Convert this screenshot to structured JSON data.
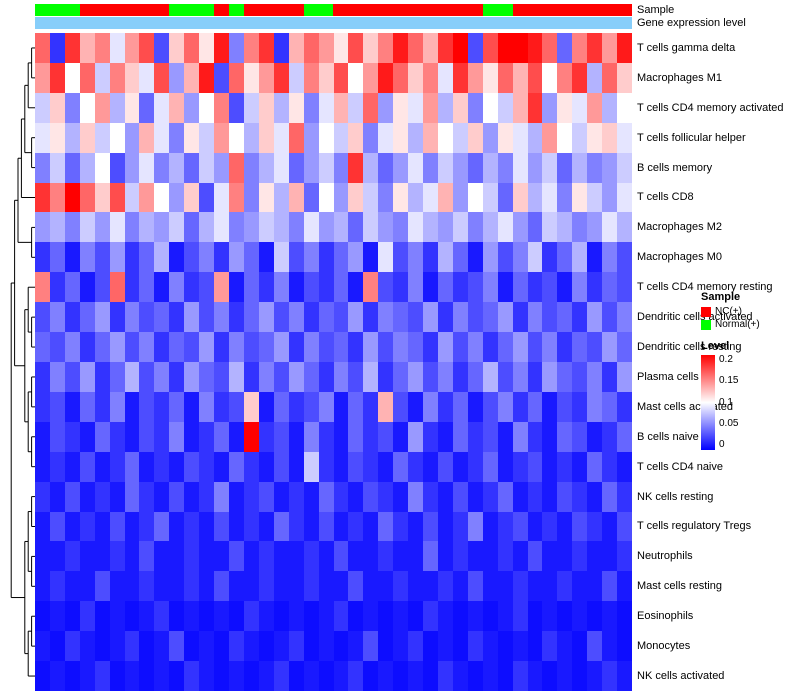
{
  "annotations": {
    "sample_label": "Sample",
    "gene_expression_label": "Gene expression level",
    "sample_colors": {
      "NC": "#FF0000",
      "Normal": "#00FF00"
    },
    "gene_expression_color": "#87CEFA",
    "sample_assignments": [
      "Normal",
      "Normal",
      "Normal",
      "NC",
      "NC",
      "NC",
      "NC",
      "NC",
      "NC",
      "Normal",
      "Normal",
      "Normal",
      "NC",
      "Normal",
      "NC",
      "NC",
      "NC",
      "NC",
      "Normal",
      "Normal",
      "NC",
      "NC",
      "NC",
      "NC",
      "NC",
      "NC",
      "NC",
      "NC",
      "NC",
      "NC",
      "Normal",
      "Normal",
      "NC",
      "NC",
      "NC",
      "NC",
      "NC",
      "NC",
      "NC",
      "NC"
    ]
  },
  "legend": {
    "sample_title": "Sample",
    "sample_items": [
      {
        "label": "NC(+)",
        "color": "#FF0000"
      },
      {
        "label": "Normal(+)",
        "color": "#00FF00"
      }
    ],
    "level_title": "Level",
    "level_ticks": [
      "0.2",
      "0.15",
      "0.1",
      "0.05",
      "0"
    ],
    "level_gradient": [
      "#FF0000",
      "#FFFFFF",
      "#0000FF"
    ]
  },
  "chart_data": {
    "type": "heatmap",
    "title": "",
    "value_range": [
      0,
      0.2
    ],
    "colormap": "blue-white-red",
    "columns_count": 40,
    "rows": [
      "T cells gamma delta",
      "Macrophages M1",
      "T cells CD4 memory activated",
      "T cells follicular helper",
      "B cells memory",
      "T cells CD8",
      "Macrophages M2",
      "Macrophages M0",
      "T cells CD4 memory resting",
      "Dendritic cells activated",
      "Dendritic cells resting",
      "Plasma cells",
      "Mast cells activated",
      "B cells naive",
      "T cells CD4 naive",
      "NK cells resting",
      "T cells regulatory  Tregs",
      "Neutrophils",
      "Mast cells resting",
      "Eosinophils",
      "Monocytes",
      "NK cells activated"
    ],
    "row_dendrogram": [
      [
        [
          [
            [
              [
                [
                  0,
                  1
                ],
                2
              ],
              [
                3,
                4
              ]
            ],
            5
          ],
          [
            6,
            7
          ]
        ],
        [
          [
            8,
            [
              9,
              10
            ]
          ],
          [
            [
              11,
              12
            ],
            [
              13,
              14
            ]
          ]
        ]
      ],
      [
        [
          [
            15,
            16
          ],
          [
            17,
            18
          ]
        ],
        [
          [
            19,
            20
          ],
          21
        ]
      ]
    ],
    "matrix": [
      [
        0.16,
        0.02,
        0.18,
        0.13,
        0.15,
        0.09,
        0.14,
        0.17,
        0.03,
        0.12,
        0.16,
        0.11,
        0.19,
        0.05,
        0.15,
        0.18,
        0.02,
        0.13,
        0.16,
        0.14,
        0.11,
        0.17,
        0.12,
        0.15,
        0.19,
        0.16,
        0.13,
        0.18,
        0.2,
        0.03,
        0.17,
        0.21,
        0.22,
        0.19,
        0.16,
        0.04,
        0.15,
        0.18,
        0.14,
        0.19
      ],
      [
        0.14,
        0.18,
        0.1,
        0.16,
        0.08,
        0.15,
        0.12,
        0.09,
        0.17,
        0.06,
        0.13,
        0.19,
        0.03,
        0.16,
        0.11,
        0.14,
        0.18,
        0.08,
        0.15,
        0.12,
        0.17,
        0.1,
        0.14,
        0.19,
        0.16,
        0.12,
        0.15,
        0.09,
        0.18,
        0.14,
        0.11,
        0.16,
        0.13,
        0.17,
        0.1,
        0.15,
        0.18,
        0.07,
        0.16,
        0.12
      ],
      [
        0.08,
        0.12,
        0.05,
        0.1,
        0.14,
        0.07,
        0.11,
        0.04,
        0.09,
        0.13,
        0.06,
        0.1,
        0.15,
        0.03,
        0.08,
        0.12,
        0.07,
        0.11,
        0.05,
        0.09,
        0.13,
        0.08,
        0.16,
        0.06,
        0.11,
        0.09,
        0.14,
        0.07,
        0.12,
        0.05,
        0.1,
        0.08,
        0.13,
        0.18,
        0.06,
        0.11,
        0.09,
        0.14,
        0.07,
        0.1
      ],
      [
        0.09,
        0.11,
        0.07,
        0.12,
        0.08,
        0.1,
        0.06,
        0.13,
        0.09,
        0.05,
        0.11,
        0.08,
        0.14,
        0.1,
        0.07,
        0.12,
        0.09,
        0.16,
        0.06,
        0.1,
        0.08,
        0.12,
        0.05,
        0.09,
        0.11,
        0.07,
        0.13,
        0.1,
        0.08,
        0.12,
        0.06,
        0.11,
        0.09,
        0.07,
        0.14,
        0.1,
        0.08,
        0.11,
        0.12,
        0.09
      ],
      [
        0.05,
        0.08,
        0.04,
        0.07,
        0.1,
        0.03,
        0.06,
        0.09,
        0.05,
        0.07,
        0.04,
        0.08,
        0.06,
        0.16,
        0.05,
        0.07,
        0.09,
        0.04,
        0.06,
        0.08,
        0.05,
        0.18,
        0.07,
        0.04,
        0.06,
        0.09,
        0.05,
        0.08,
        0.06,
        0.04,
        0.07,
        0.05,
        0.09,
        0.06,
        0.08,
        0.04,
        0.07,
        0.05,
        0.06,
        0.08
      ],
      [
        0.18,
        0.15,
        0.2,
        0.16,
        0.12,
        0.17,
        0.08,
        0.14,
        0.1,
        0.06,
        0.12,
        0.03,
        0.09,
        0.15,
        0.05,
        0.11,
        0.07,
        0.13,
        0.04,
        0.1,
        0.06,
        0.12,
        0.08,
        0.05,
        0.11,
        0.07,
        0.09,
        0.13,
        0.06,
        0.1,
        0.08,
        0.04,
        0.12,
        0.07,
        0.09,
        0.05,
        0.11,
        0.08,
        0.06,
        0.09
      ],
      [
        0.06,
        0.07,
        0.05,
        0.08,
        0.06,
        0.09,
        0.05,
        0.07,
        0.06,
        0.08,
        0.04,
        0.07,
        0.09,
        0.05,
        0.06,
        0.08,
        0.07,
        0.05,
        0.09,
        0.06,
        0.07,
        0.04,
        0.08,
        0.06,
        0.05,
        0.09,
        0.07,
        0.06,
        0.08,
        0.05,
        0.07,
        0.09,
        0.06,
        0.04,
        0.08,
        0.07,
        0.05,
        0.06,
        0.09,
        0.07
      ],
      [
        0.02,
        0.04,
        0.01,
        0.05,
        0.03,
        0.06,
        0.02,
        0.04,
        0.07,
        0.01,
        0.03,
        0.05,
        0.02,
        0.06,
        0.04,
        0.01,
        0.08,
        0.03,
        0.05,
        0.02,
        0.04,
        0.06,
        0.01,
        0.09,
        0.03,
        0.05,
        0.02,
        0.07,
        0.04,
        0.01,
        0.06,
        0.03,
        0.05,
        0.08,
        0.02,
        0.04,
        0.07,
        0.01,
        0.05,
        0.03
      ],
      [
        0.15,
        0.02,
        0.04,
        0.01,
        0.03,
        0.16,
        0.02,
        0.04,
        0.01,
        0.05,
        0.02,
        0.03,
        0.14,
        0.01,
        0.04,
        0.02,
        0.05,
        0.01,
        0.03,
        0.02,
        0.04,
        0.01,
        0.15,
        0.03,
        0.02,
        0.05,
        0.01,
        0.04,
        0.02,
        0.03,
        0.05,
        0.01,
        0.04,
        0.02,
        0.03,
        0.01,
        0.05,
        0.02,
        0.04,
        0.03
      ],
      [
        0.03,
        0.05,
        0.02,
        0.04,
        0.06,
        0.02,
        0.05,
        0.03,
        0.04,
        0.02,
        0.06,
        0.03,
        0.05,
        0.02,
        0.04,
        0.06,
        0.03,
        0.05,
        0.02,
        0.04,
        0.03,
        0.06,
        0.02,
        0.05,
        0.04,
        0.03,
        0.06,
        0.02,
        0.05,
        0.03,
        0.04,
        0.06,
        0.02,
        0.05,
        0.03,
        0.04,
        0.02,
        0.06,
        0.03,
        0.05
      ],
      [
        0.04,
        0.03,
        0.05,
        0.02,
        0.04,
        0.06,
        0.03,
        0.05,
        0.02,
        0.04,
        0.03,
        0.06,
        0.02,
        0.05,
        0.03,
        0.04,
        0.06,
        0.02,
        0.05,
        0.03,
        0.04,
        0.02,
        0.06,
        0.03,
        0.05,
        0.04,
        0.02,
        0.06,
        0.03,
        0.05,
        0.02,
        0.04,
        0.06,
        0.03,
        0.05,
        0.02,
        0.04,
        0.03,
        0.06,
        0.04
      ],
      [
        0.02,
        0.05,
        0.03,
        0.06,
        0.02,
        0.04,
        0.07,
        0.03,
        0.05,
        0.02,
        0.06,
        0.04,
        0.03,
        0.07,
        0.02,
        0.05,
        0.03,
        0.06,
        0.04,
        0.02,
        0.05,
        0.03,
        0.07,
        0.02,
        0.04,
        0.06,
        0.03,
        0.05,
        0.02,
        0.04,
        0.07,
        0.03,
        0.05,
        0.02,
        0.06,
        0.04,
        0.03,
        0.05,
        0.02,
        0.06
      ],
      [
        0.02,
        0.03,
        0.01,
        0.04,
        0.02,
        0.05,
        0.01,
        0.03,
        0.02,
        0.04,
        0.01,
        0.05,
        0.02,
        0.03,
        0.12,
        0.01,
        0.04,
        0.02,
        0.03,
        0.05,
        0.01,
        0.04,
        0.02,
        0.13,
        0.03,
        0.01,
        0.05,
        0.02,
        0.04,
        0.01,
        0.03,
        0.05,
        0.02,
        0.04,
        0.01,
        0.03,
        0.02,
        0.05,
        0.04,
        0.02
      ],
      [
        0.01,
        0.03,
        0.02,
        0.01,
        0.04,
        0.02,
        0.01,
        0.03,
        0.02,
        0.05,
        0.01,
        0.02,
        0.04,
        0.01,
        0.2,
        0.02,
        0.03,
        0.01,
        0.05,
        0.02,
        0.01,
        0.04,
        0.02,
        0.03,
        0.01,
        0.06,
        0.02,
        0.01,
        0.04,
        0.02,
        0.03,
        0.01,
        0.05,
        0.02,
        0.01,
        0.04,
        0.03,
        0.01,
        0.02,
        0.04
      ],
      [
        0.01,
        0.02,
        0.01,
        0.03,
        0.01,
        0.02,
        0.04,
        0.01,
        0.02,
        0.01,
        0.03,
        0.02,
        0.01,
        0.04,
        0.02,
        0.01,
        0.03,
        0.01,
        0.08,
        0.02,
        0.01,
        0.03,
        0.02,
        0.01,
        0.04,
        0.02,
        0.01,
        0.03,
        0.01,
        0.02,
        0.04,
        0.01,
        0.02,
        0.03,
        0.01,
        0.02,
        0.01,
        0.04,
        0.02,
        0.01
      ],
      [
        0.02,
        0.01,
        0.03,
        0.01,
        0.02,
        0.01,
        0.04,
        0.02,
        0.01,
        0.03,
        0.01,
        0.02,
        0.05,
        0.01,
        0.02,
        0.03,
        0.01,
        0.02,
        0.01,
        0.04,
        0.02,
        0.01,
        0.03,
        0.02,
        0.01,
        0.05,
        0.02,
        0.01,
        0.03,
        0.01,
        0.02,
        0.04,
        0.01,
        0.02,
        0.01,
        0.03,
        0.02,
        0.01,
        0.04,
        0.02
      ],
      [
        0.01,
        0.03,
        0.01,
        0.02,
        0.01,
        0.03,
        0.01,
        0.02,
        0.04,
        0.01,
        0.02,
        0.01,
        0.03,
        0.01,
        0.02,
        0.01,
        0.04,
        0.02,
        0.01,
        0.03,
        0.01,
        0.02,
        0.01,
        0.04,
        0.02,
        0.01,
        0.03,
        0.01,
        0.02,
        0.05,
        0.01,
        0.02,
        0.03,
        0.01,
        0.02,
        0.01,
        0.03,
        0.02,
        0.01,
        0.03
      ],
      [
        0.01,
        0.01,
        0.02,
        0.01,
        0.01,
        0.02,
        0.01,
        0.03,
        0.01,
        0.01,
        0.02,
        0.01,
        0.01,
        0.03,
        0.01,
        0.02,
        0.01,
        0.01,
        0.02,
        0.01,
        0.03,
        0.01,
        0.01,
        0.02,
        0.01,
        0.01,
        0.04,
        0.01,
        0.02,
        0.01,
        0.01,
        0.02,
        0.01,
        0.03,
        0.01,
        0.01,
        0.02,
        0.01,
        0.01,
        0.02
      ],
      [
        0.01,
        0.02,
        0.01,
        0.01,
        0.03,
        0.01,
        0.01,
        0.02,
        0.01,
        0.01,
        0.02,
        0.01,
        0.03,
        0.01,
        0.01,
        0.02,
        0.01,
        0.01,
        0.02,
        0.01,
        0.01,
        0.03,
        0.01,
        0.01,
        0.02,
        0.01,
        0.01,
        0.02,
        0.01,
        0.03,
        0.01,
        0.01,
        0.02,
        0.01,
        0.01,
        0.02,
        0.01,
        0.01,
        0.03,
        0.01
      ],
      [
        0.005,
        0.01,
        0.005,
        0.02,
        0.005,
        0.01,
        0.005,
        0.01,
        0.02,
        0.005,
        0.01,
        0.005,
        0.01,
        0.005,
        0.02,
        0.01,
        0.005,
        0.01,
        0.005,
        0.01,
        0.02,
        0.005,
        0.01,
        0.005,
        0.01,
        0.005,
        0.02,
        0.01,
        0.005,
        0.01,
        0.005,
        0.01,
        0.02,
        0.005,
        0.01,
        0.005,
        0.01,
        0.005,
        0.01,
        0.005
      ],
      [
        0.01,
        0.005,
        0.02,
        0.01,
        0.005,
        0.01,
        0.02,
        0.005,
        0.01,
        0.03,
        0.005,
        0.01,
        0.005,
        0.02,
        0.01,
        0.005,
        0.01,
        0.02,
        0.005,
        0.01,
        0.005,
        0.01,
        0.03,
        0.005,
        0.01,
        0.02,
        0.005,
        0.01,
        0.005,
        0.02,
        0.01,
        0.005,
        0.01,
        0.005,
        0.02,
        0.01,
        0.005,
        0.03,
        0.01,
        0.005
      ],
      [
        0.005,
        0.01,
        0.005,
        0.01,
        0.02,
        0.005,
        0.01,
        0.005,
        0.01,
        0.005,
        0.02,
        0.01,
        0.005,
        0.01,
        0.005,
        0.01,
        0.02,
        0.005,
        0.01,
        0.005,
        0.01,
        0.02,
        0.005,
        0.01,
        0.005,
        0.01,
        0.005,
        0.02,
        0.01,
        0.005,
        0.01,
        0.005,
        0.02,
        0.01,
        0.005,
        0.01,
        0.005,
        0.01,
        0.02,
        0.01
      ]
    ]
  }
}
